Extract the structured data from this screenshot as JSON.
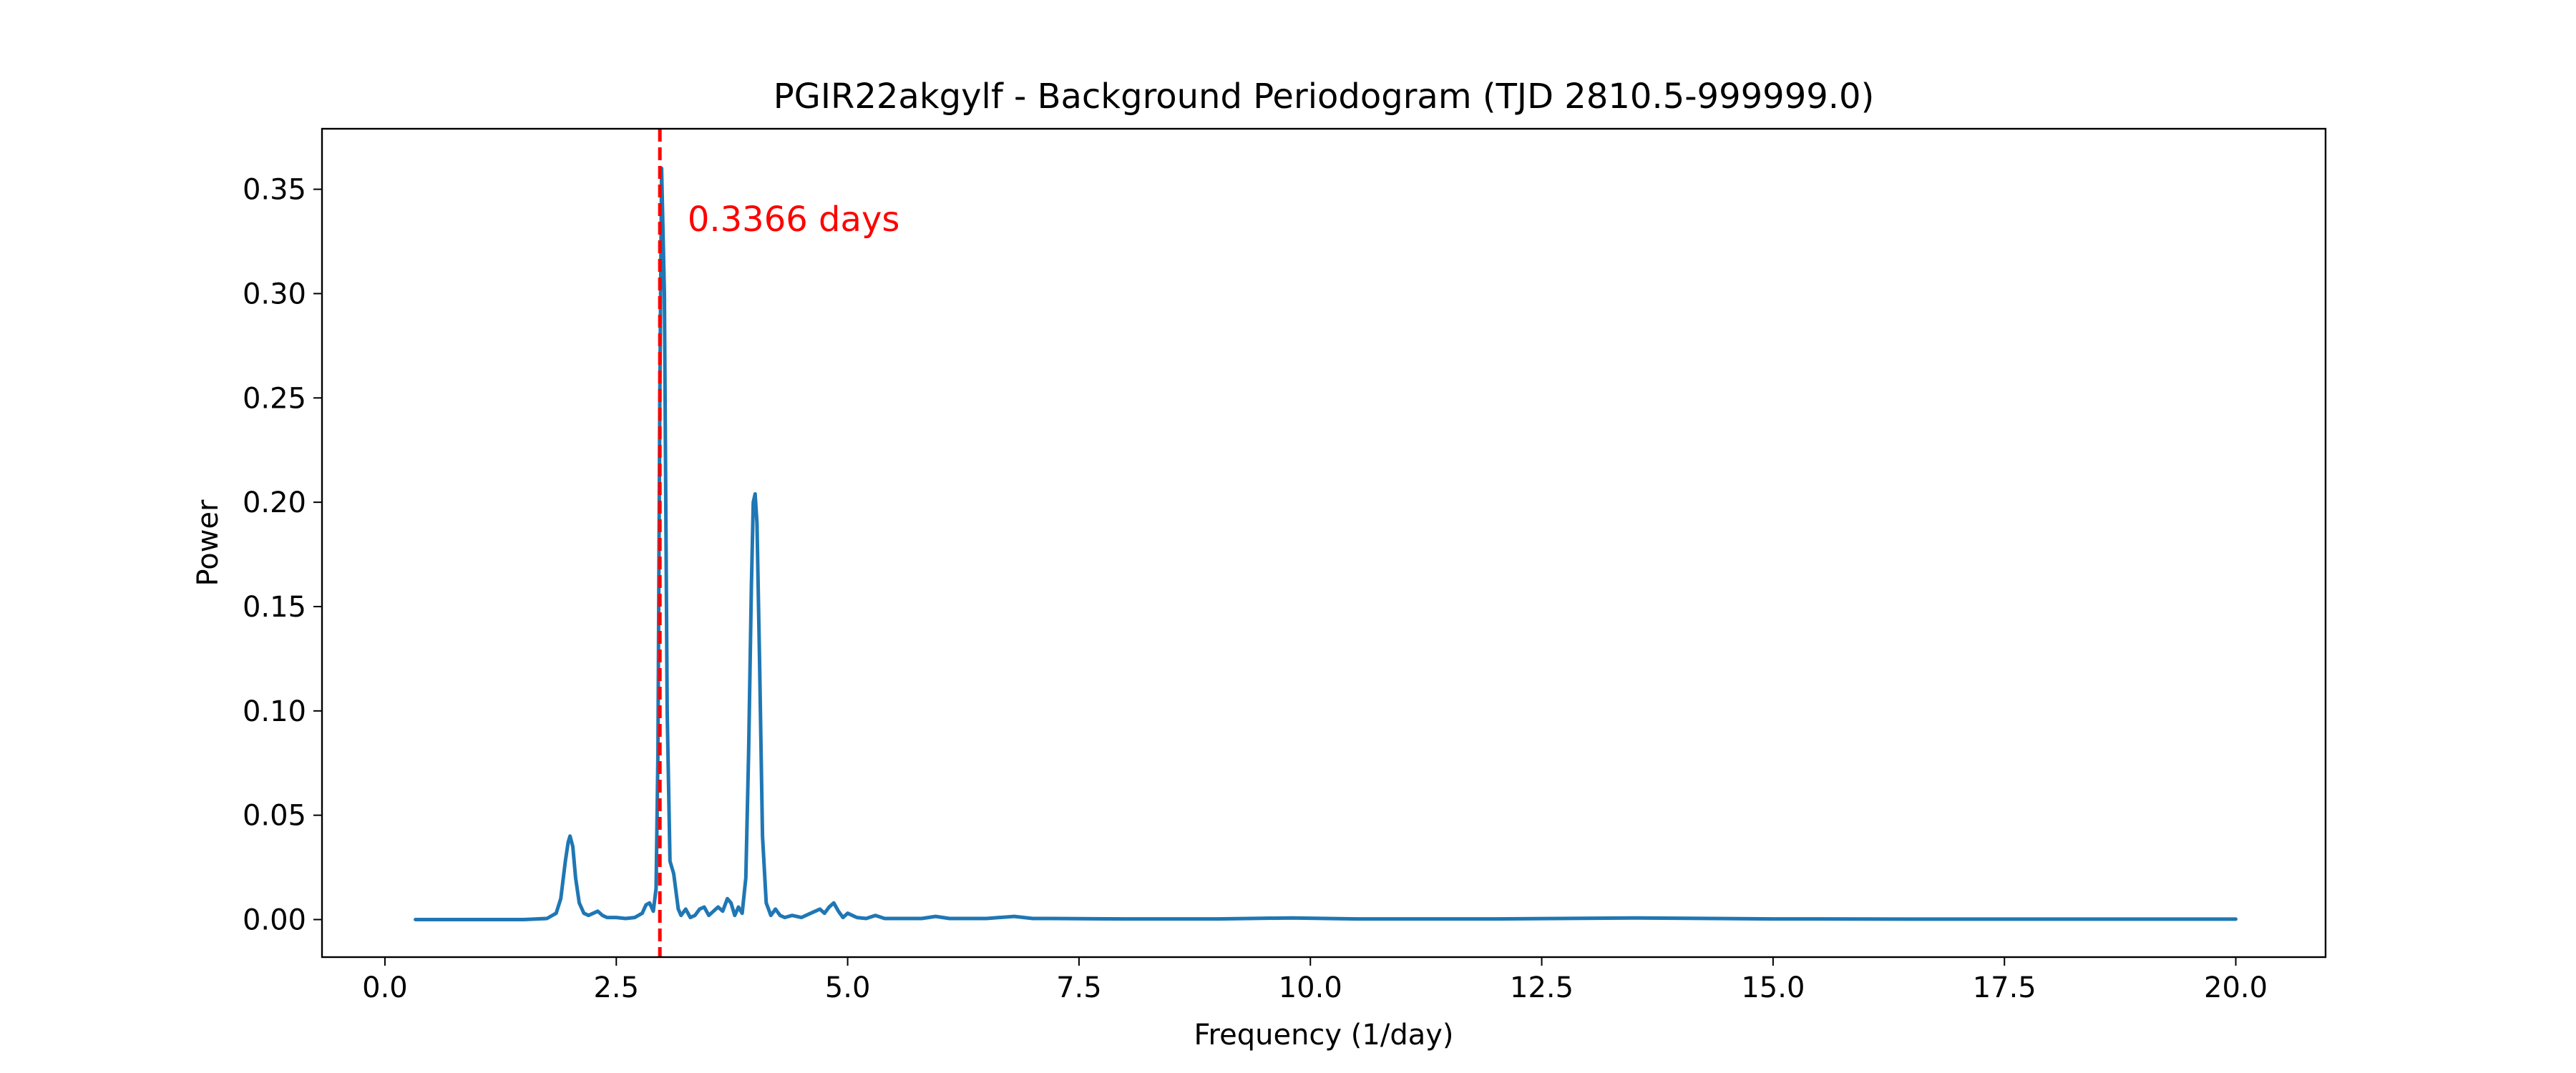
{
  "chart_data": {
    "type": "line",
    "title": "PGIR22akgylf - Background Periodogram (TJD 2810.5-999999.0)",
    "xlabel": "Frequency (1/day)",
    "ylabel": "Power",
    "xlim": [
      -0.68,
      20.97
    ],
    "ylim": [
      -0.018,
      0.379
    ],
    "xticks": [
      0.0,
      2.5,
      5.0,
      7.5,
      10.0,
      12.5,
      15.0,
      17.5,
      20.0
    ],
    "xtick_labels": [
      "0.0",
      "2.5",
      "5.0",
      "7.5",
      "10.0",
      "12.5",
      "15.0",
      "17.5",
      "20.0"
    ],
    "yticks": [
      0.0,
      0.05,
      0.1,
      0.15,
      0.2,
      0.25,
      0.3,
      0.35
    ],
    "ytick_labels": [
      "0.00",
      "0.05",
      "0.10",
      "0.15",
      "0.20",
      "0.25",
      "0.30",
      "0.35"
    ],
    "grid": false,
    "series": [
      {
        "color": "#1f77b4",
        "x": [
          0.33,
          1.0,
          1.5,
          1.75,
          1.85,
          1.9,
          1.95,
          1.98,
          2.0,
          2.03,
          2.06,
          2.1,
          2.15,
          2.2,
          2.3,
          2.35,
          2.4,
          2.5,
          2.6,
          2.7,
          2.78,
          2.82,
          2.86,
          2.9,
          2.93,
          2.95,
          2.97,
          2.99,
          3.02,
          3.05,
          3.08,
          3.12,
          3.17,
          3.2,
          3.25,
          3.3,
          3.35,
          3.4,
          3.45,
          3.5,
          3.55,
          3.6,
          3.65,
          3.7,
          3.74,
          3.78,
          3.82,
          3.86,
          3.9,
          3.93,
          3.96,
          3.98,
          4.0,
          4.02,
          4.05,
          4.08,
          4.12,
          4.17,
          4.22,
          4.27,
          4.32,
          4.4,
          4.5,
          4.6,
          4.7,
          4.75,
          4.8,
          4.85,
          4.9,
          4.95,
          5.0,
          5.05,
          5.1,
          5.2,
          5.3,
          5.4,
          5.6,
          5.8,
          5.95,
          6.1,
          6.5,
          6.8,
          7.0,
          7.2,
          8.0,
          9.0,
          9.8,
          10.5,
          12.0,
          13.5,
          15.0,
          17.0,
          19.0,
          20.0
        ],
        "y": [
          0.0,
          0.0,
          0.0,
          0.0005,
          0.003,
          0.01,
          0.028,
          0.037,
          0.04,
          0.035,
          0.02,
          0.008,
          0.003,
          0.002,
          0.004,
          0.002,
          0.001,
          0.001,
          0.0005,
          0.001,
          0.003,
          0.007,
          0.008,
          0.004,
          0.015,
          0.08,
          0.25,
          0.36,
          0.3,
          0.1,
          0.028,
          0.022,
          0.005,
          0.002,
          0.005,
          0.001,
          0.002,
          0.005,
          0.006,
          0.002,
          0.004,
          0.006,
          0.004,
          0.01,
          0.008,
          0.002,
          0.006,
          0.003,
          0.02,
          0.08,
          0.16,
          0.2,
          0.204,
          0.19,
          0.12,
          0.04,
          0.008,
          0.002,
          0.005,
          0.002,
          0.001,
          0.002,
          0.001,
          0.003,
          0.005,
          0.003,
          0.006,
          0.008,
          0.004,
          0.001,
          0.003,
          0.002,
          0.001,
          0.0005,
          0.002,
          0.0005,
          0.0005,
          0.0005,
          0.0015,
          0.0005,
          0.0005,
          0.0015,
          0.0005,
          0.0005,
          0.0003,
          0.0003,
          0.0008,
          0.0003,
          0.0003,
          0.0008,
          0.0003,
          0.0002,
          0.0002,
          0.0002
        ]
      }
    ],
    "vline": {
      "x": 2.971,
      "color": "#ff0000",
      "style": "dashed"
    },
    "annotation": {
      "text": "0.3366 days",
      "x": 3.27,
      "y": 0.33,
      "color": "#ff0000"
    }
  }
}
